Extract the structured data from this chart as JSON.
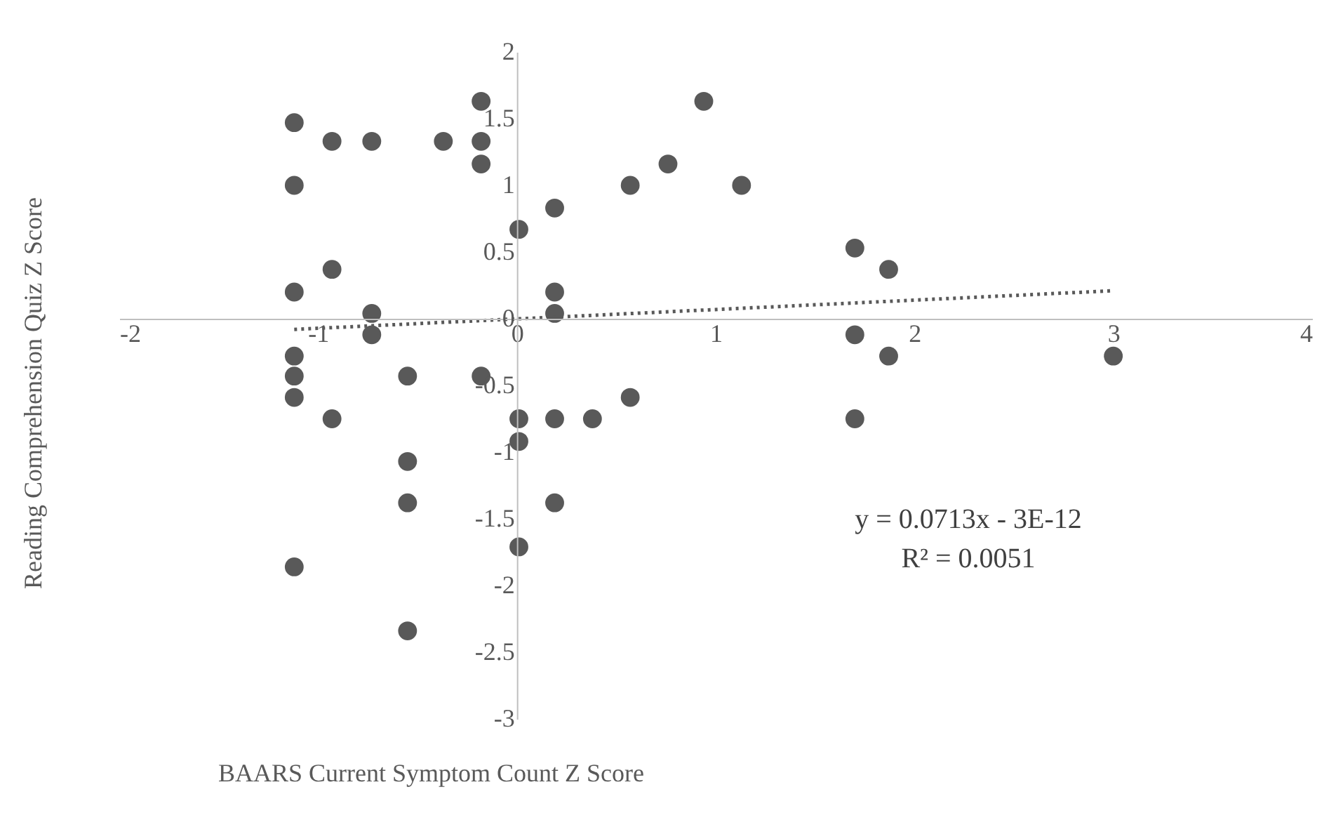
{
  "chart_data": {
    "type": "scatter",
    "xlabel": "BAARS Current Symptom Count Z Score",
    "ylabel": "Reading Comprehension  Quiz Z Score",
    "xlim": [
      -2,
      4
    ],
    "xticks": [
      -2,
      -1,
      0,
      1,
      2,
      3,
      4
    ],
    "ylim": [
      -3,
      2
    ],
    "yticks": [
      -3,
      -2.5,
      -2,
      -1.5,
      -1,
      -0.5,
      0,
      0.5,
      1,
      1.5,
      2
    ],
    "grid": false,
    "annotations": [
      "y = 0.0713x - 3E-12",
      "R² = 0.0051"
    ],
    "series": [
      {
        "type": "scatter",
        "marker": "circle",
        "color": "#595959",
        "x": [
          -1.12,
          -0.93,
          -0.73,
          -0.37,
          -0.18,
          -0.18,
          -0.18,
          -1.12,
          0.01,
          0.19,
          0.76,
          0.94,
          0.57,
          1.13,
          -0.93,
          -1.12,
          -0.73,
          -0.73,
          0.19,
          0.19,
          1.7,
          1.87,
          1.7,
          1.87,
          3.0,
          -1.12,
          -1.12,
          -1.12,
          -0.55,
          -0.18,
          -0.93,
          0.01,
          0.19,
          0.38,
          0.57,
          1.7,
          0.01,
          -0.55,
          -0.55,
          0.19,
          0.01,
          -1.12,
          -0.55
        ],
        "values": [
          1.47,
          1.33,
          1.33,
          1.33,
          1.63,
          1.33,
          1.16,
          1.0,
          0.67,
          0.83,
          1.16,
          1.63,
          1.0,
          1.0,
          0.37,
          0.2,
          0.04,
          -0.12,
          0.2,
          0.04,
          0.53,
          0.37,
          -0.12,
          -0.28,
          -0.28,
          -0.28,
          -0.43,
          -0.59,
          -0.43,
          -0.43,
          -0.75,
          -0.75,
          -0.75,
          -0.75,
          -0.59,
          -0.75,
          -0.92,
          -1.07,
          -1.38,
          -1.38,
          -1.71,
          -1.86,
          -2.34
        ]
      },
      {
        "type": "line",
        "line_style": "dotted",
        "color": "#595959",
        "x": [
          -1.12,
          3.0
        ],
        "values": [
          -0.08,
          0.21
        ]
      }
    ]
  }
}
